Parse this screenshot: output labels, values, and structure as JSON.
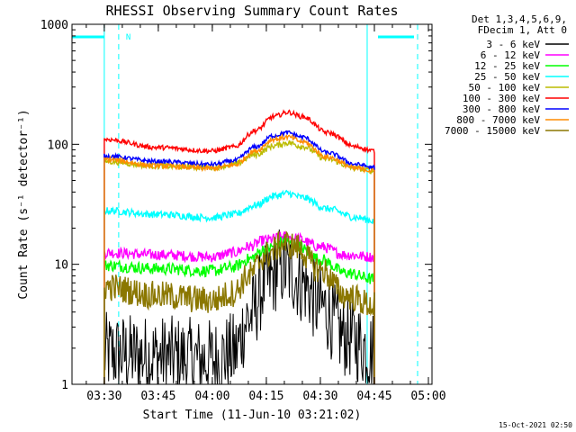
{
  "chart_data": {
    "type": "line",
    "title": "RHESSI Observing Summary Count Rates",
    "xlabel": "Start Time (11-Jun-10 03:21:02)",
    "ylabel": "Count Rate (s⁻¹ detector⁻¹)",
    "y_scale": "log",
    "ylim": [
      1,
      1000
    ],
    "xlim": [
      "03:21:02",
      "05:01:00"
    ],
    "x_ticks": [
      "03:30",
      "03:45",
      "04:00",
      "04:15",
      "04:30",
      "04:45",
      "05:00"
    ],
    "y_ticks": [
      "1",
      "10",
      "100",
      "1000"
    ],
    "legend_header": [
      "Det 1,3,4,5,6,9,",
      "FDecim 1, Att 0"
    ],
    "legend_position": "top-right",
    "timestamp": "15-Oct-2021 02:50",
    "series": [
      {
        "name": "3 - 6 keV",
        "color": "#000000",
        "x": [
          "03:30",
          "03:45",
          "04:00",
          "04:06",
          "04:10",
          "04:15",
          "04:19",
          "04:22",
          "04:25",
          "04:30",
          "04:37",
          "04:45"
        ],
        "values": [
          1.8,
          1.7,
          1.6,
          1.8,
          3.5,
          7,
          9.5,
          8.5,
          7,
          4.5,
          2.5,
          1.9
        ]
      },
      {
        "name": "6 - 12 keV",
        "color": "#ff00ff",
        "x": [
          "03:30",
          "03:45",
          "04:00",
          "04:06",
          "04:10",
          "04:15",
          "04:20",
          "04:23",
          "04:30",
          "04:37",
          "04:45"
        ],
        "values": [
          12.5,
          12,
          11.5,
          12.5,
          14,
          16,
          17,
          16.5,
          14,
          12,
          11.5
        ]
      },
      {
        "name": "12 - 25 keV",
        "color": "#00ff00",
        "x": [
          "03:30",
          "03:45",
          "04:00",
          "04:06",
          "04:10",
          "04:15",
          "04:20",
          "04:23",
          "04:30",
          "04:37",
          "04:45"
        ],
        "values": [
          9.8,
          9.2,
          8.8,
          9.5,
          11,
          13.5,
          15.5,
          14.5,
          11,
          8.5,
          7.5
        ]
      },
      {
        "name": "25 - 50 keV",
        "color": "#00ffff",
        "x": [
          "03:30",
          "03:45",
          "04:00",
          "04:06",
          "04:12",
          "04:17",
          "04:21",
          "04:25",
          "04:32",
          "04:40",
          "04:45"
        ],
        "values": [
          28,
          26,
          24.5,
          26,
          31,
          37,
          39,
          36,
          29,
          24.5,
          23
        ]
      },
      {
        "name": "50 - 100 keV",
        "color": "#bbbb00",
        "x": [
          "03:30",
          "03:45",
          "04:00",
          "04:06",
          "04:12",
          "04:17",
          "04:21",
          "04:25",
          "04:32",
          "04:40",
          "04:45"
        ],
        "values": [
          72,
          66,
          64,
          68,
          82,
          97,
          103,
          96,
          75,
          63,
          60
        ]
      },
      {
        "name": "100 - 300 keV",
        "color": "#ff0000",
        "x": [
          "03:30",
          "03:45",
          "04:00",
          "04:06",
          "04:12",
          "04:17",
          "04:21",
          "04:25",
          "04:32",
          "04:40",
          "04:45"
        ],
        "values": [
          110,
          94,
          88,
          95,
          130,
          170,
          185,
          170,
          125,
          95,
          88
        ]
      },
      {
        "name": "300 - 800 keV",
        "color": "#0000ff",
        "x": [
          "03:30",
          "03:45",
          "04:00",
          "04:06",
          "04:12",
          "04:17",
          "04:21",
          "04:25",
          "04:32",
          "04:40",
          "04:45"
        ],
        "values": [
          80,
          72,
          68,
          73,
          95,
          118,
          125,
          115,
          85,
          68,
          64
        ]
      },
      {
        "name": "800 - 7000 keV",
        "color": "#ff8c00",
        "x": [
          "03:30",
          "03:45",
          "04:00",
          "04:06",
          "04:12",
          "04:17",
          "04:21",
          "04:25",
          "04:32",
          "04:40",
          "04:45"
        ],
        "values": [
          75,
          66,
          63,
          67,
          88,
          110,
          115,
          105,
          78,
          63,
          60
        ]
      },
      {
        "name": "7000 - 15000 keV",
        "color": "#8b7700",
        "x": [
          "03:30",
          "03:45",
          "04:00",
          "04:06",
          "04:10",
          "04:15",
          "04:20",
          "04:23",
          "04:30",
          "04:37",
          "04:45"
        ],
        "values": [
          6.5,
          5.5,
          5,
          5.8,
          8,
          12,
          15,
          14,
          9,
          5.5,
          4.5
        ]
      }
    ],
    "annotations": {
      "night_bars": [
        [
          "03:21:02",
          "03:30"
        ],
        [
          "04:46",
          "04:56"
        ]
      ],
      "saa_marks": [
        "03:30",
        "04:43"
      ],
      "n_marks": [
        "03:34",
        "04:57"
      ],
      "n_label": "N"
    }
  }
}
